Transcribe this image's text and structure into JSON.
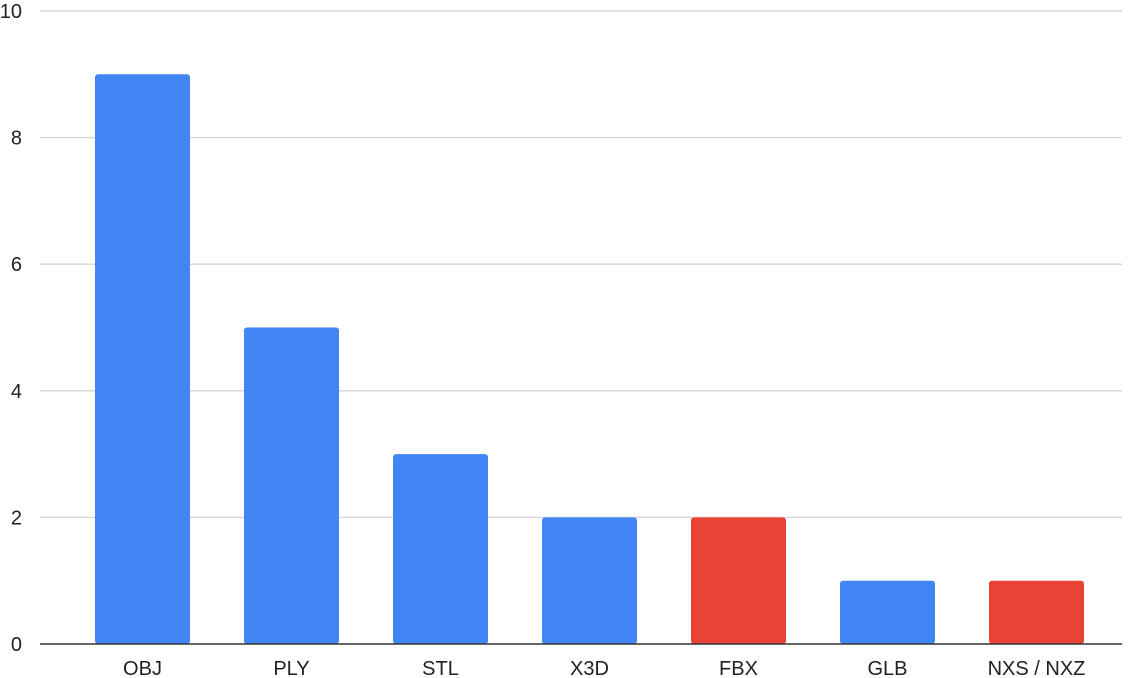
{
  "chart_data": {
    "type": "bar",
    "title": "",
    "xlabel": "",
    "ylabel": "",
    "categories": [
      "OBJ",
      "PLY",
      "STL",
      "X3D",
      "FBX",
      "GLB",
      "NXS / NXZ"
    ],
    "values": [
      9,
      5,
      3,
      2,
      2,
      1,
      1
    ],
    "bar_colors": [
      "#4285f4",
      "#4285f4",
      "#4285f4",
      "#4285f4",
      "#ea4335",
      "#4285f4",
      "#ea4335"
    ],
    "ylim": [
      0,
      10
    ],
    "yticks": [
      0,
      2,
      4,
      6,
      8,
      10
    ],
    "grid": true,
    "legend": "none"
  }
}
